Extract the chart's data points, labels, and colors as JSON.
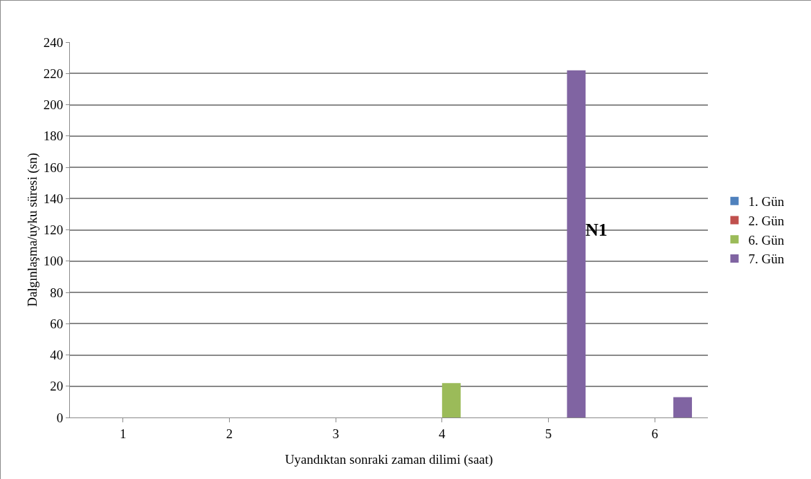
{
  "chart_data": {
    "type": "bar",
    "xlabel": "Uyandıktan sonraki zaman dilimi (saat)",
    "ylabel": "Dalgınlaşma/uyku süresi (sn)",
    "categories": [
      "1",
      "2",
      "3",
      "4",
      "5",
      "6"
    ],
    "series": [
      {
        "name": "1. Gün",
        "color": "#4f81bd",
        "values": [
          0,
          0,
          0,
          0,
          0,
          0
        ]
      },
      {
        "name": "2. Gün",
        "color": "#c0504d",
        "values": [
          0,
          0,
          0,
          0,
          0,
          0
        ]
      },
      {
        "name": "6. Gün",
        "color": "#9bbb59",
        "values": [
          0,
          0,
          0,
          22,
          0,
          0
        ]
      },
      {
        "name": "7. Gün",
        "color": "#8064a2",
        "values": [
          0,
          0,
          0,
          0,
          222,
          13
        ]
      }
    ],
    "ylim": [
      0,
      240
    ],
    "yticks": [
      0,
      20,
      40,
      60,
      80,
      100,
      120,
      140,
      160,
      180,
      200,
      220,
      240
    ],
    "grid": "y",
    "legend": "right",
    "annotations": [
      "N1"
    ]
  }
}
